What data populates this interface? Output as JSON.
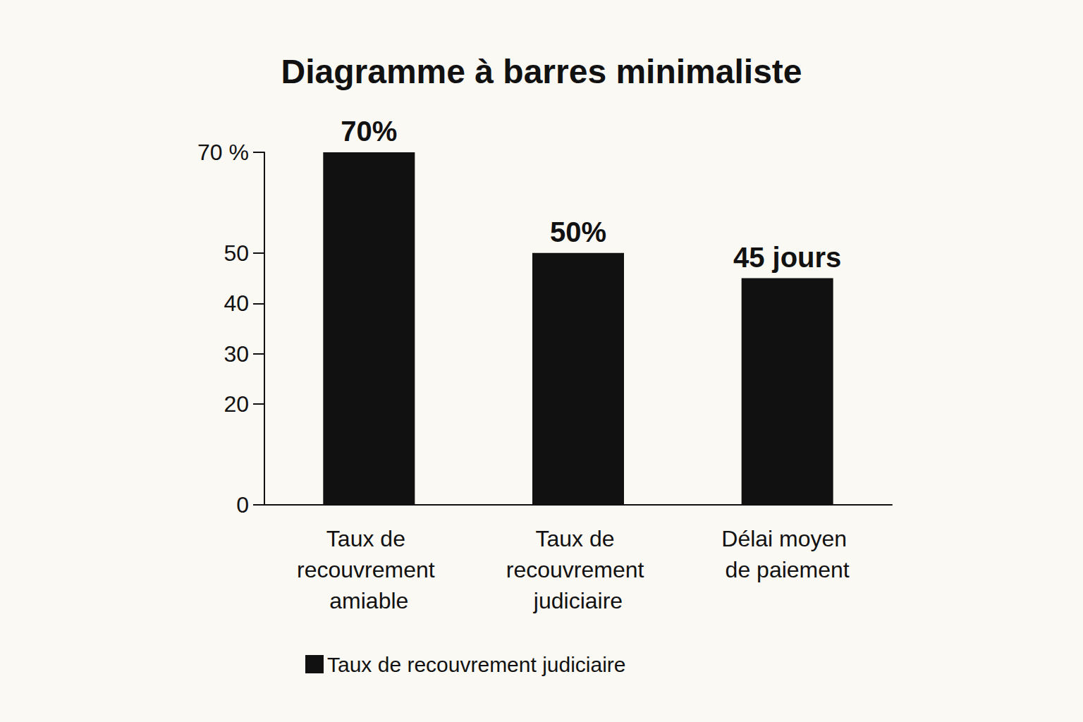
{
  "chart_data": {
    "type": "bar",
    "title": "Diagramme à barres minimaliste",
    "categories": [
      "Taux de recouvrement amiable",
      "Taux de recouvrement judiciaire",
      "Délai moyen de paiement"
    ],
    "series": [
      {
        "name": "Taux de recouvrement judiciaire",
        "color": "#111111",
        "values": [
          70,
          50,
          45
        ],
        "value_labels": [
          "70%",
          "50%",
          "45 jours"
        ]
      }
    ],
    "ylim": [
      0,
      70
    ],
    "yticks": [
      0,
      20,
      30,
      40,
      50,
      {
        "value": 70,
        "label": "70 %"
      }
    ],
    "grid": false,
    "legend": "bottom",
    "data_labels": true
  }
}
